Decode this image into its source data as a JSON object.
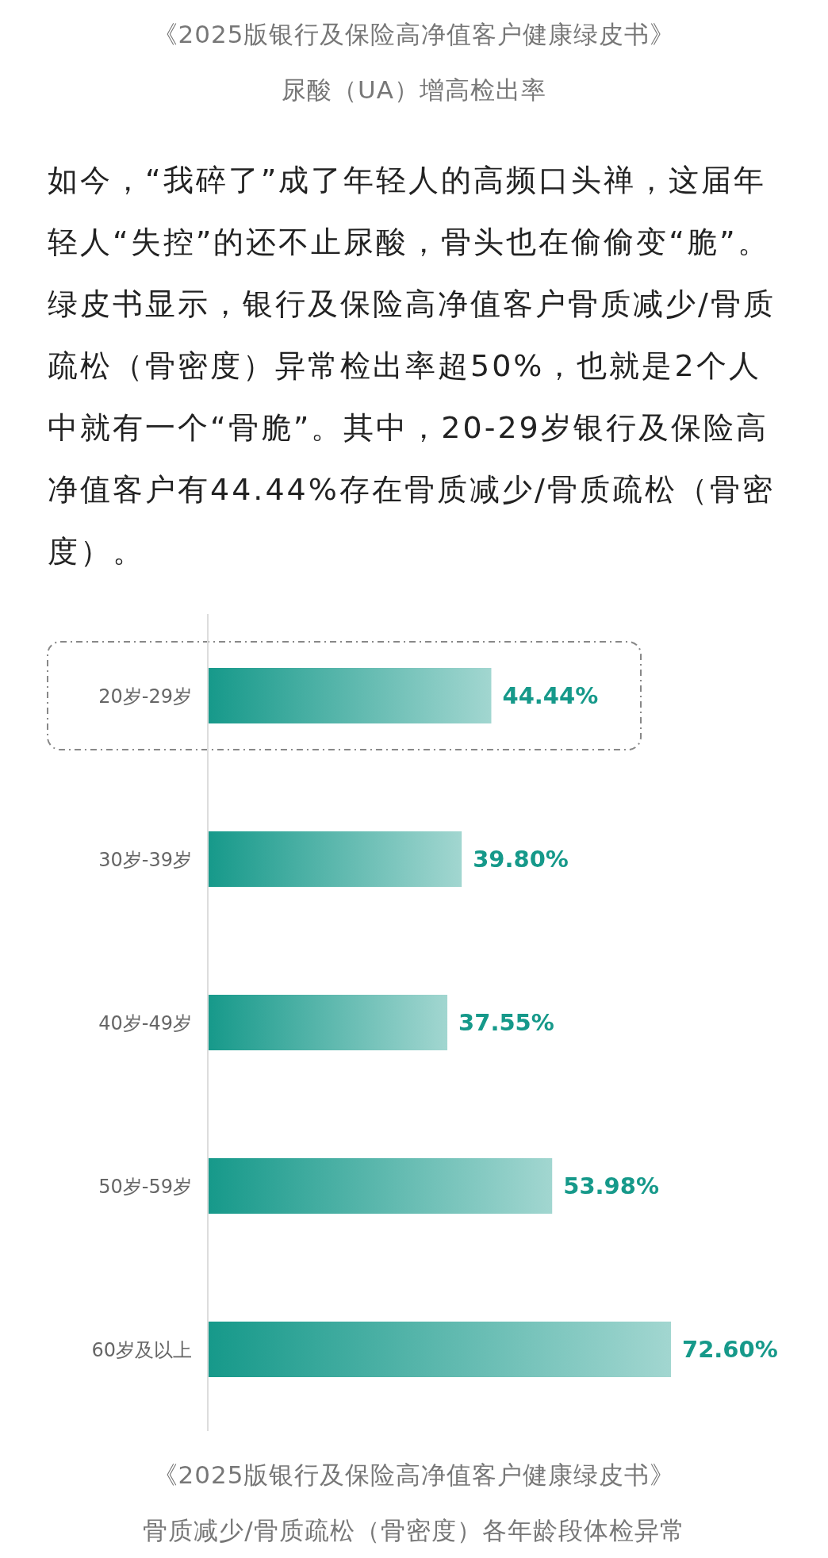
{
  "chart_data": {
    "type": "bar",
    "orientation": "horizontal",
    "title": "《2025版银行及保险高净值客户健康绿皮书》",
    "subtitle": "骨质减少/骨质疏松（骨密度）各年龄段体检异常",
    "annotations": [
      "《2025版银行及保险高净值客户健康绿皮书》",
      "尿酸（UA）增高检出率",
      "如今，“我碎了”成了年轻人的高频口头禅，这届年轻人“失控”的还不止尿酸，骨头也在偷偷变“脆”。绿皮书显示，银行及保险高净值客户骨质减少/骨质疏松（骨密度）异常检出率超50%，也就是2个人中就有一个“骨脆”。其中，20-29岁银行及保险高净值客户有44.44%存在骨质减少/骨质疏松（骨密度）。"
    ],
    "categories": [
      "20岁-29岁",
      "30岁-39岁",
      "40岁-49岁",
      "50岁-59岁",
      "60岁及以上"
    ],
    "values": [
      44.44,
      39.8,
      37.55,
      53.98,
      72.6
    ],
    "value_labels": [
      "44.44%",
      "39.80%",
      "37.55%",
      "53.98%",
      "72.60%"
    ],
    "color": "#16998a"
  }
}
